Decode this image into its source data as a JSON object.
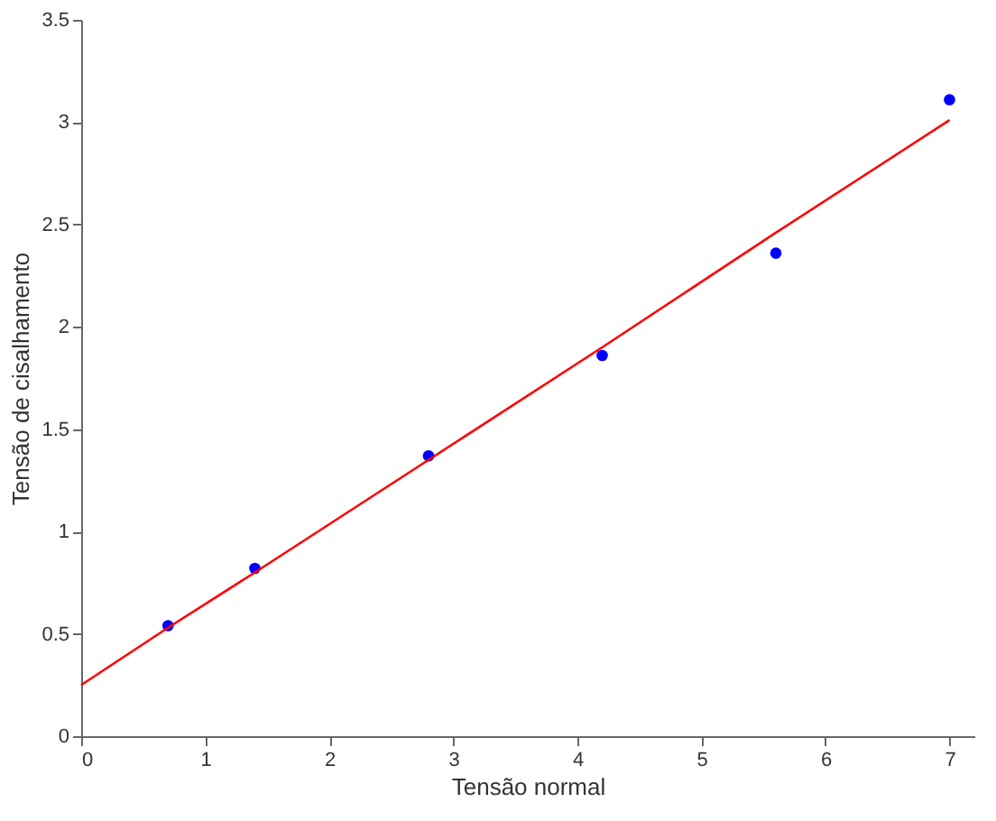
{
  "chart_data": {
    "type": "scatter",
    "xlabel": "Tensão normal",
    "ylabel": "Tensão de cisalhamento",
    "xlim": [
      0,
      7.2
    ],
    "ylim": [
      0,
      3.5
    ],
    "xticks": [
      0,
      1,
      2,
      3,
      4,
      5,
      6,
      7
    ],
    "yticks": [
      0,
      0.5,
      1,
      1.5,
      2,
      2.5,
      3,
      3.5
    ],
    "grid": false,
    "series": [
      {
        "color": "#0000ff",
        "marker": "circle",
        "x": [
          0.7,
          1.4,
          2.8,
          4.2,
          5.6,
          7
        ],
        "values": [
          0.54,
          0.82,
          1.37,
          1.86,
          2.36,
          3.11
        ]
      },
      {
        "type": "line",
        "color": "#ff0000",
        "line_style": "solid",
        "x": [
          0,
          0.7,
          1.4,
          2.8,
          4.2,
          5.6,
          7
        ],
        "values": [
          0.25,
          0.53,
          0.8,
          1.35,
          1.9,
          2.46,
          3.01
        ]
      }
    ]
  }
}
